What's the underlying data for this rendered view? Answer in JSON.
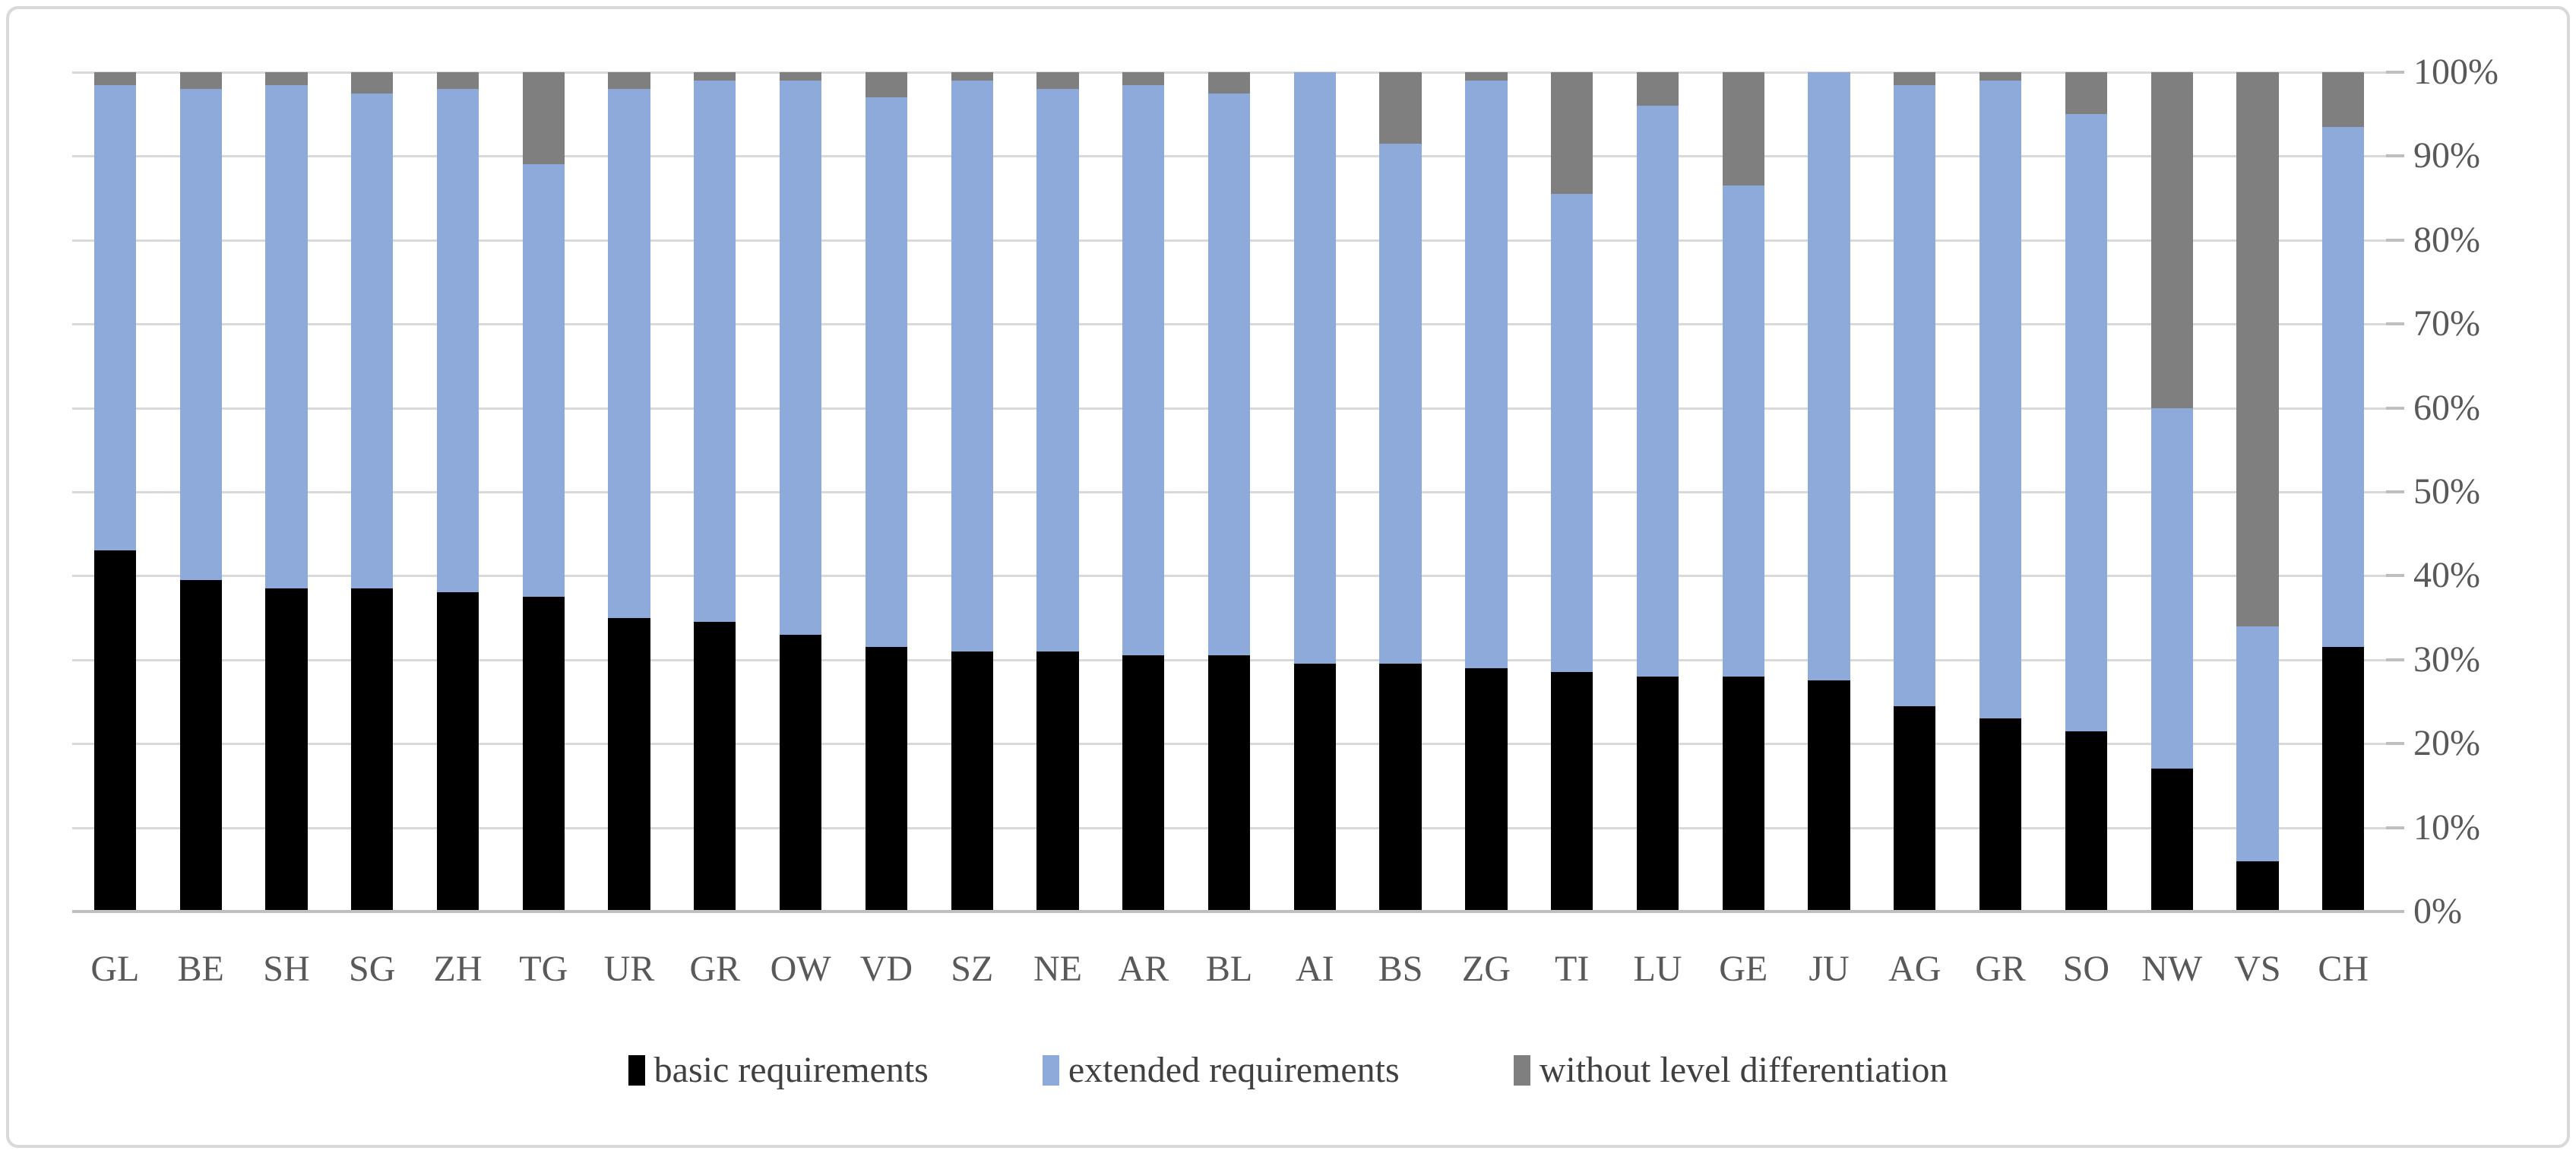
{
  "chart_data": {
    "type": "bar",
    "stacked": true,
    "percent_stacked": true,
    "title": "",
    "xlabel": "",
    "ylabel": "",
    "ylim": [
      0,
      100
    ],
    "grid": "horizontal",
    "legend_position": "bottom",
    "y_tick_labels": [
      "0%",
      "10%",
      "20%",
      "30%",
      "40%",
      "50%",
      "60%",
      "70%",
      "80%",
      "90%",
      "100%"
    ],
    "categories": [
      "GL",
      "BE",
      "SH",
      "SG",
      "ZH",
      "TG",
      "UR",
      "GR",
      "OW",
      "VD",
      "SZ",
      "NE",
      "AR",
      "BL",
      "AI",
      "BS",
      "ZG",
      "TI",
      "LU",
      "GE",
      "JU",
      "AG",
      "GR",
      "SO",
      "NW",
      "VS",
      "CH"
    ],
    "series": [
      {
        "name": "basic requirements",
        "color": "#000000",
        "values": [
          43,
          39.5,
          38.5,
          38.5,
          38,
          37.5,
          35,
          34.5,
          33,
          31.5,
          31,
          31,
          30.5,
          30.5,
          29.5,
          29.5,
          29,
          28.5,
          28,
          28,
          27.5,
          24.5,
          23,
          21.5,
          17,
          6,
          31.5
        ]
      },
      {
        "name": "extended requirements",
        "color": "#8EAADB",
        "values": [
          55.5,
          58.5,
          60,
          59,
          60,
          51.5,
          63,
          64.5,
          66,
          65.5,
          68,
          67,
          68,
          67,
          70.5,
          62,
          70,
          57,
          68,
          58.5,
          72.5,
          74,
          76,
          73.5,
          43,
          28,
          62
        ]
      },
      {
        "name": "without level differentiation",
        "color": "#7F7F7F",
        "values": [
          1.5,
          2,
          1.5,
          2.5,
          2,
          11,
          2,
          1,
          1,
          3,
          1,
          2,
          1.5,
          2.5,
          0,
          8.5,
          1,
          14.5,
          4,
          13.5,
          0,
          1.5,
          1,
          5,
          40,
          66,
          6.5
        ]
      }
    ]
  },
  "colors": {
    "background": "#ffffff",
    "frame_border": "#d9d9d9",
    "gridline": "#d9d9d9",
    "axis_line": "#bfbfbf",
    "tick": "#bfbfbf",
    "axis_text": "#595959",
    "legend_text": "#404040"
  }
}
